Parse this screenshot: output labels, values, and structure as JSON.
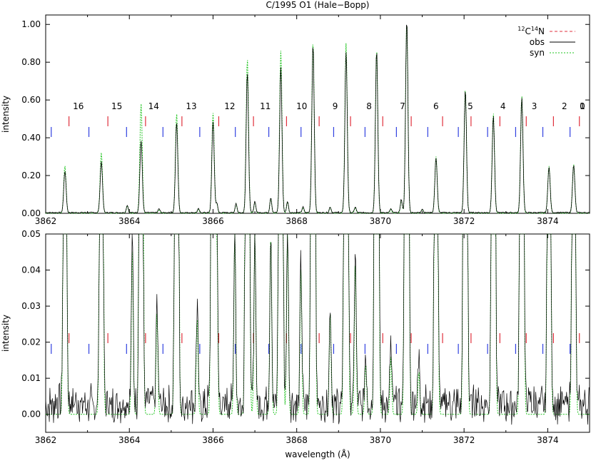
{
  "chart_data": [
    {
      "type": "line",
      "title": "C/1995 O1 (Hale−Bopp)",
      "ylabel": "intensity",
      "xlim": [
        3862,
        3875
      ],
      "ylim": [
        0,
        1.05
      ],
      "xticks": [
        3862,
        3864,
        3866,
        3868,
        3870,
        3872,
        3874
      ],
      "xtick_labels": [
        "3862",
        "3864",
        "3866",
        "3868",
        "3870",
        "3872",
        "3874"
      ],
      "yticks": [
        0,
        0.2,
        0.4,
        0.6,
        0.8,
        1.0
      ],
      "ytick_labels": [
        "0.00",
        "0.20",
        "0.40",
        "0.60",
        "0.80",
        "1.00"
      ],
      "legend": {
        "placement": "top-right",
        "entries": [
          {
            "pre": "12",
            "a": "C",
            "sup": "14",
            "b": "N",
            "color": "#e0303c",
            "dash": "4,3"
          },
          {
            "label": "obs",
            "color": "#000000",
            "dash": ""
          },
          {
            "label": "syn",
            "color": "#22c422",
            "dash": "2,2"
          }
        ]
      },
      "band_labels": [
        {
          "label": "16",
          "x": 3862.78
        },
        {
          "label": "15",
          "x": 3863.7
        },
        {
          "label": "14",
          "x": 3864.58
        },
        {
          "label": "13",
          "x": 3865.48
        },
        {
          "label": "12",
          "x": 3866.4
        },
        {
          "label": "11",
          "x": 3867.25
        },
        {
          "label": "10",
          "x": 3868.12
        },
        {
          "label": "9",
          "x": 3868.92
        },
        {
          "label": "8",
          "x": 3869.73
        },
        {
          "label": "7",
          "x": 3870.53
        },
        {
          "label": "6",
          "x": 3871.33
        },
        {
          "label": "5",
          "x": 3872.15
        },
        {
          "label": "4",
          "x": 3872.93
        },
        {
          "label": "3",
          "x": 3873.68
        },
        {
          "label": "2",
          "x": 3874.4
        },
        {
          "label": "1",
          "x": 3875.1
        },
        {
          "label": "0",
          "x": 3875.8
        }
      ],
      "series": [
        {
          "name": "obs",
          "color": "#000000",
          "peaks": [
            {
              "x": 3862.46,
              "y": 0.22
            },
            {
              "x": 3863.33,
              "y": 0.27
            },
            {
              "x": 3864.28,
              "y": 0.38
            },
            {
              "x": 3865.13,
              "y": 0.48
            },
            {
              "x": 3866.0,
              "y": 0.48
            },
            {
              "x": 3866.82,
              "y": 0.74
            },
            {
              "x": 3867.62,
              "y": 0.77
            },
            {
              "x": 3868.39,
              "y": 0.89
            },
            {
              "x": 3869.18,
              "y": 0.85
            },
            {
              "x": 3869.91,
              "y": 0.86
            },
            {
              "x": 3870.63,
              "y": 1.02
            },
            {
              "x": 3871.33,
              "y": 0.29
            },
            {
              "x": 3872.03,
              "y": 0.65
            },
            {
              "x": 3872.7,
              "y": 0.51
            },
            {
              "x": 3873.38,
              "y": 0.61
            },
            {
              "x": 3874.03,
              "y": 0.24
            },
            {
              "x": 3874.62,
              "y": 0.25
            }
          ],
          "minor_peaks": [
            {
              "x": 3863.95,
              "y": 0.04
            },
            {
              "x": 3864.71,
              "y": 0.02
            },
            {
              "x": 3865.65,
              "y": 0.02
            },
            {
              "x": 3866.09,
              "y": 0.05
            },
            {
              "x": 3866.55,
              "y": 0.05
            },
            {
              "x": 3867.0,
              "y": 0.06
            },
            {
              "x": 3867.38,
              "y": 0.08
            },
            {
              "x": 3867.78,
              "y": 0.06
            },
            {
              "x": 3868.15,
              "y": 0.03
            },
            {
              "x": 3868.8,
              "y": 0.03
            },
            {
              "x": 3869.4,
              "y": 0.03
            },
            {
              "x": 3870.25,
              "y": 0.02
            },
            {
              "x": 3870.5,
              "y": 0.07
            },
            {
              "x": 3871.0,
              "y": 0.02
            }
          ]
        },
        {
          "name": "syn",
          "color": "#22c422",
          "peaks": [
            {
              "x": 3862.46,
              "y": 0.25
            },
            {
              "x": 3863.33,
              "y": 0.32
            },
            {
              "x": 3864.28,
              "y": 0.58
            },
            {
              "x": 3865.13,
              "y": 0.53
            },
            {
              "x": 3866.0,
              "y": 0.53
            },
            {
              "x": 3866.82,
              "y": 0.82
            },
            {
              "x": 3867.62,
              "y": 0.86
            },
            {
              "x": 3868.39,
              "y": 0.91
            },
            {
              "x": 3869.18,
              "y": 0.9
            },
            {
              "x": 3869.91,
              "y": 0.87
            },
            {
              "x": 3870.63,
              "y": 1.02
            },
            {
              "x": 3871.33,
              "y": 0.3
            },
            {
              "x": 3872.03,
              "y": 0.66
            },
            {
              "x": 3872.7,
              "y": 0.53
            },
            {
              "x": 3873.38,
              "y": 0.62
            },
            {
              "x": 3874.03,
              "y": 0.25
            },
            {
              "x": 3874.62,
              "y": 0.26
            }
          ]
        }
      ],
      "markers": {
        "red_x": [
          3862.42,
          3863.35,
          3864.25,
          3865.12,
          3866.0,
          3866.83,
          3867.62,
          3868.4,
          3869.15,
          3869.92,
          3870.6,
          3871.35,
          3872.03,
          3872.72,
          3873.35,
          3874.0,
          3874.62
        ],
        "blue_x": [
          3862.15,
          3863.05,
          3863.95,
          3864.82,
          3865.7,
          3866.55,
          3867.35,
          3868.12,
          3868.9,
          3869.65,
          3870.4,
          3871.15,
          3871.88,
          3872.58,
          3873.25,
          3873.9,
          3874.55
        ]
      }
    },
    {
      "type": "line",
      "xlabel": "wavelength (Å)",
      "ylabel": "intensity",
      "xlim": [
        3862,
        3875
      ],
      "ylim": [
        -0.005,
        0.05
      ],
      "xticks": [
        3862,
        3864,
        3866,
        3868,
        3870,
        3872,
        3874
      ],
      "xtick_labels": [
        "3862",
        "3864",
        "3866",
        "3868",
        "3870",
        "3872",
        "3874"
      ],
      "yticks": [
        0,
        0.01,
        0.02,
        0.03,
        0.04,
        0.05
      ],
      "ytick_labels": [
        "0.00",
        "0.01",
        "0.02",
        "0.03",
        "0.04",
        "0.05"
      ],
      "note": "zoom of same spectra; strong peaks clipped at top",
      "series_ref": "same as upper panel",
      "extra_peaks": [
        {
          "x": 3864.07,
          "y": 0.046
        },
        {
          "x": 3864.66,
          "y": 0.028
        },
        {
          "x": 3865.62,
          "y": 0.027
        },
        {
          "x": 3866.09,
          "y": 0.05
        },
        {
          "x": 3866.52,
          "y": 0.05
        },
        {
          "x": 3867.0,
          "y": 0.05
        },
        {
          "x": 3867.38,
          "y": 0.05
        },
        {
          "x": 3867.78,
          "y": 0.05
        },
        {
          "x": 3868.1,
          "y": 0.041
        },
        {
          "x": 3868.8,
          "y": 0.028
        },
        {
          "x": 3869.4,
          "y": 0.042
        },
        {
          "x": 3869.65,
          "y": 0.014
        },
        {
          "x": 3870.25,
          "y": 0.016
        },
        {
          "x": 3870.92,
          "y": 0.012
        }
      ]
    }
  ]
}
